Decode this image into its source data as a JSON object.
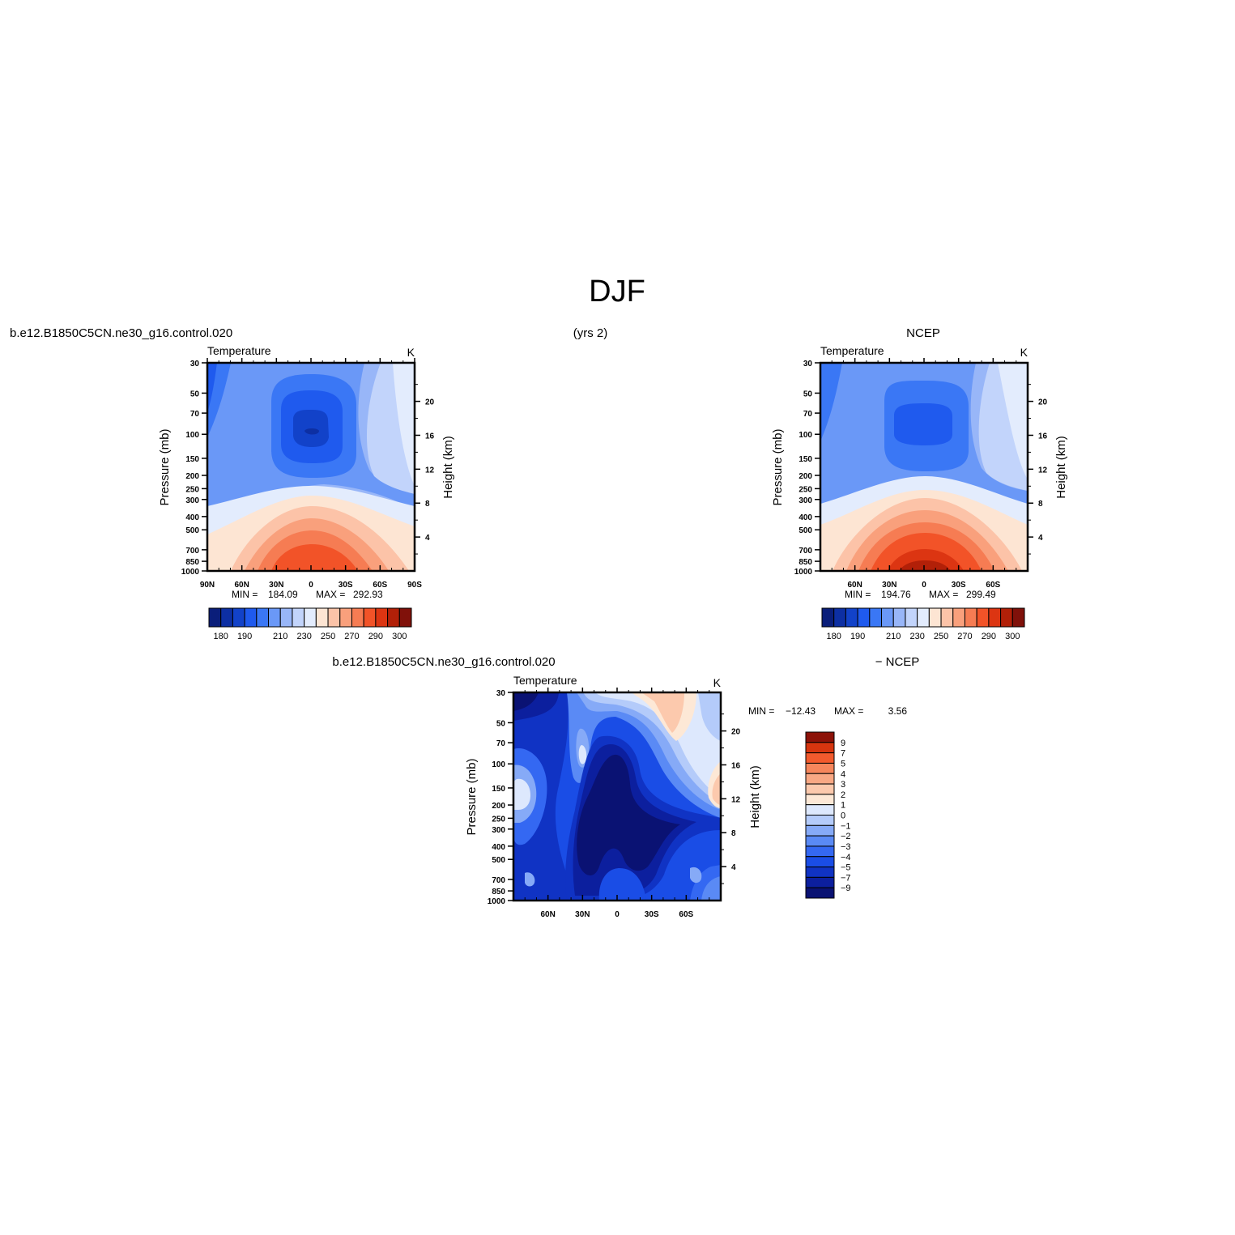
{
  "figure": {
    "title": "DJF",
    "top_left_label": "b.e12.B1850C5CN.ne30_g16.control.020",
    "top_center_label": "(yrs 2)",
    "top_right_label": "NCEP",
    "bottom_left_label": "b.e12.B1850C5CN.ne30_g16.control.020",
    "bottom_right_label": "− NCEP"
  },
  "chart_data": [
    {
      "id": "model",
      "type": "heatmap",
      "title": "Temperature",
      "units": "K",
      "ylabel": "Pressure (mb)",
      "ylabel_right": "Height (km)",
      "x_ticks": [
        "90N",
        "60N",
        "30N",
        "0",
        "30S",
        "60S",
        "90S"
      ],
      "x_tick_values": [
        90,
        60,
        30,
        0,
        -30,
        -60,
        -90
      ],
      "xlim": [
        90,
        -90
      ],
      "y_ticks": [
        30,
        50,
        70,
        100,
        150,
        200,
        250,
        300,
        400,
        500,
        700,
        850,
        1000
      ],
      "ylim": [
        1000,
        30
      ],
      "yscale": "log",
      "height_ticks": [
        4,
        8,
        12,
        16,
        20
      ],
      "stats": {
        "min_label": "MIN =",
        "min": "184.09",
        "max_label": "MAX =",
        "max": "292.93"
      },
      "colorbar": {
        "levels": [
          180,
          185,
          190,
          195,
          200,
          210,
          220,
          230,
          240,
          250,
          260,
          270,
          280,
          290,
          295,
          300
        ],
        "tick_labels": [
          "180",
          "190",
          "210",
          "230",
          "250",
          "270",
          "290",
          "300"
        ],
        "colors": [
          "#0a1e7a",
          "#0d2fa3",
          "#1242c9",
          "#1f5aee",
          "#3a77f5",
          "#6a98f7",
          "#98b6f8",
          "#c2d4fb",
          "#e3ecfd",
          "#fde5d3",
          "#fcc3a8",
          "#f9a07c",
          "#f67c53",
          "#f25328",
          "#dc3512",
          "#b22008",
          "#80110a"
        ]
      }
    },
    {
      "id": "ncep",
      "type": "heatmap",
      "title": "Temperature",
      "units": "K",
      "ylabel": "Pressure (mb)",
      "ylabel_right": "Height (km)",
      "x_ticks": [
        "60N",
        "30N",
        "0",
        "30S",
        "60S"
      ],
      "x_tick_values": [
        60,
        30,
        0,
        -30,
        -60
      ],
      "xlim": [
        90,
        -90
      ],
      "y_ticks": [
        30,
        50,
        70,
        100,
        150,
        200,
        250,
        300,
        400,
        500,
        700,
        850,
        1000
      ],
      "ylim": [
        1000,
        30
      ],
      "yscale": "log",
      "height_ticks": [
        4,
        8,
        12,
        16,
        20
      ],
      "stats": {
        "min_label": "MIN =",
        "min": "194.76",
        "max_label": "MAX =",
        "max": "299.49"
      },
      "colorbar": {
        "levels": [
          180,
          185,
          190,
          195,
          200,
          210,
          220,
          230,
          240,
          250,
          260,
          270,
          280,
          290,
          295,
          300
        ],
        "tick_labels": [
          "180",
          "190",
          "210",
          "230",
          "250",
          "270",
          "290",
          "300"
        ],
        "colors": [
          "#0a1e7a",
          "#0d2fa3",
          "#1242c9",
          "#1f5aee",
          "#3a77f5",
          "#6a98f7",
          "#98b6f8",
          "#c2d4fb",
          "#e3ecfd",
          "#fde5d3",
          "#fcc3a8",
          "#f9a07c",
          "#f67c53",
          "#f25328",
          "#dc3512",
          "#b22008",
          "#80110a"
        ]
      }
    },
    {
      "id": "difference",
      "type": "heatmap",
      "title": "Temperature",
      "units": "K",
      "ylabel": "Pressure (mb)",
      "ylabel_right": "Height (km)",
      "x_ticks": [
        "60N",
        "30N",
        "0",
        "30S",
        "60S"
      ],
      "x_tick_values": [
        60,
        30,
        0,
        -30,
        -60
      ],
      "xlim": [
        90,
        -90
      ],
      "y_ticks": [
        30,
        50,
        70,
        100,
        150,
        200,
        250,
        300,
        400,
        500,
        700,
        850,
        1000
      ],
      "ylim": [
        1000,
        30
      ],
      "yscale": "log",
      "height_ticks": [
        4,
        8,
        12,
        16,
        20
      ],
      "stats": {
        "min_label": "MIN =",
        "min": "−12.43",
        "max_label": "MAX =",
        "max": "3.56"
      },
      "colorbar": {
        "levels": [
          -9,
          -7,
          -5,
          -4,
          -3,
          -2,
          -1,
          0,
          1,
          2,
          3,
          4,
          5,
          7,
          9
        ],
        "tick_labels": [
          "9",
          "7",
          "5",
          "4",
          "3",
          "2",
          "1",
          "0",
          "−1",
          "−2",
          "−3",
          "−4",
          "−5",
          "−7",
          "−9"
        ],
        "colors": [
          "#0a1273",
          "#0c1f9e",
          "#1033c4",
          "#1a4de6",
          "#3468f2",
          "#5a8af5",
          "#86aaf7",
          "#b4cbfa",
          "#dde8fd",
          "#fde8d6",
          "#fcc9ad",
          "#f9a884",
          "#f6865c",
          "#f25a2d",
          "#d6350f",
          "#8c1208"
        ]
      }
    }
  ]
}
